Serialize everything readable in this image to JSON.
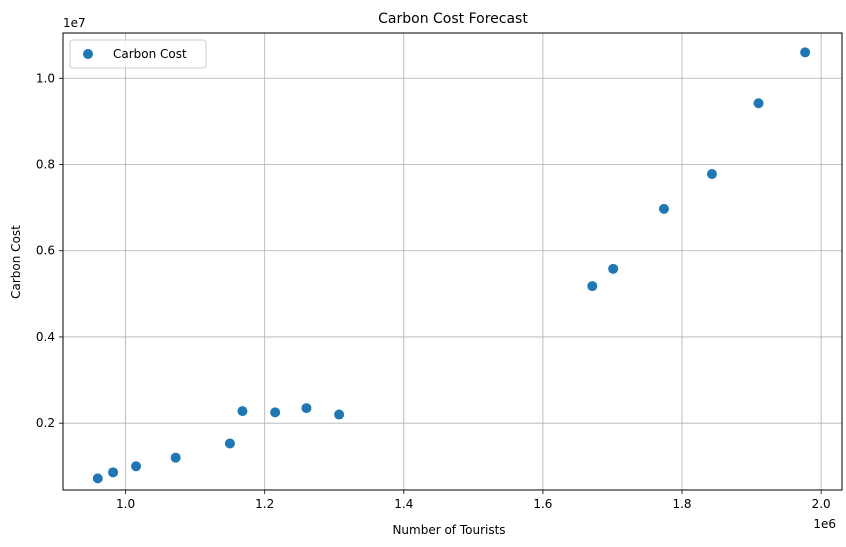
{
  "chart_data": {
    "type": "scatter",
    "title": "Carbon Cost Forecast",
    "xlabel": "Number of Tourists",
    "ylabel": "Carbon Cost",
    "x_offset_label": "1e6",
    "y_offset_label": "1e7",
    "xlim": [
      910000,
      2030000
    ],
    "ylim": [
      450000,
      11050000
    ],
    "x_ticks": [
      1.0,
      1.2,
      1.4,
      1.6,
      1.8,
      2.0
    ],
    "x_tick_labels": [
      "1.0",
      "1.2",
      "1.4",
      "1.6",
      "1.8",
      "2.0"
    ],
    "y_ticks": [
      0.2,
      0.4,
      0.6,
      0.8,
      1.0
    ],
    "y_tick_labels": [
      "0.2",
      "0.4",
      "0.6",
      "0.8",
      "1.0"
    ],
    "grid": true,
    "legend_position": "top-left",
    "series": [
      {
        "name": "Carbon Cost",
        "color": "#1f77b4",
        "points": [
          {
            "x": 960000,
            "y": 720000
          },
          {
            "x": 982000,
            "y": 860000
          },
          {
            "x": 1015000,
            "y": 1000000
          },
          {
            "x": 1072000,
            "y": 1200000
          },
          {
            "x": 1150000,
            "y": 1530000
          },
          {
            "x": 1168000,
            "y": 2280000
          },
          {
            "x": 1215000,
            "y": 2250000
          },
          {
            "x": 1260000,
            "y": 2350000
          },
          {
            "x": 1307000,
            "y": 2200000
          },
          {
            "x": 1671000,
            "y": 5180000
          },
          {
            "x": 1701000,
            "y": 5580000
          },
          {
            "x": 1774000,
            "y": 6970000
          },
          {
            "x": 1843000,
            "y": 7780000
          },
          {
            "x": 1910000,
            "y": 9420000
          },
          {
            "x": 1977000,
            "y": 10600000
          }
        ]
      }
    ]
  }
}
